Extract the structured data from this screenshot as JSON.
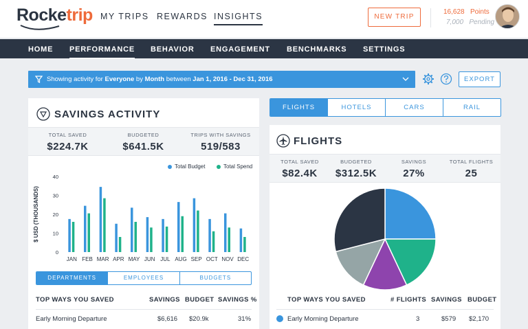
{
  "brand": {
    "rocket": "Rocke",
    "trip": "trip"
  },
  "topnav": [
    "MY TRIPS",
    "REWARDS",
    "INSIGHTS"
  ],
  "new_trip_label": "NEW TRIP",
  "points": {
    "value": "16,628",
    "label": "Points",
    "pending_value": "7,000",
    "pending_label": "Pending"
  },
  "subnav": [
    "HOME",
    "PERFORMANCE",
    "BEHAVIOR",
    "ENGAGEMENT",
    "BENCHMARKS",
    "SETTINGS"
  ],
  "filter": {
    "prefix": "Showing activity for ",
    "who": "Everyone",
    "by": " by ",
    "period": "Month",
    "between": " between ",
    "range": "Jan 1, 2016 - Dec 31, 2016"
  },
  "export_label": "EXPORT",
  "colors": {
    "accent": "#3a95dd",
    "brand_orange": "#ee6a3a",
    "dark_nav": "#2b3544",
    "spend_green": "#1fb28a"
  },
  "savings": {
    "title": "SAVINGS ACTIVITY",
    "stats": [
      {
        "label": "TOTAL SAVED",
        "value": "$224.7K"
      },
      {
        "label": "BUDGETED",
        "value": "$641.5K"
      },
      {
        "label": "TRIPS WITH SAVINGS",
        "value": "519/583"
      }
    ],
    "segments": [
      "DEPARTMENTS",
      "EMPLOYEES",
      "BUDGETS"
    ],
    "table_headers": [
      "TOP WAYS YOU SAVED",
      "SAVINGS",
      "BUDGET",
      "SAVINGS %"
    ],
    "rows": [
      {
        "name": "Early Morning Departure",
        "savings": "$6,616",
        "budget": "$20.9k",
        "pct": "31%"
      }
    ]
  },
  "chart_data": {
    "type": "bar",
    "ylabel": "$ USD (THOUSANDS)",
    "ylim": [
      0,
      40
    ],
    "yticks": [
      "0",
      "10",
      "20",
      "30",
      "40"
    ],
    "categories": [
      "JAN",
      "FEB",
      "MAR",
      "APR",
      "MAY",
      "JUN",
      "JUL",
      "AUG",
      "SEP",
      "OCT",
      "NOV",
      "DEC"
    ],
    "series": [
      {
        "name": "Total Budget",
        "color": "#3a95dd",
        "values": [
          17.5,
          24.5,
          34.5,
          15,
          23.5,
          18.5,
          17.5,
          26.5,
          28.5,
          17.5,
          20.5,
          12.5
        ]
      },
      {
        "name": "Total Spend",
        "color": "#1fb28a",
        "values": [
          16,
          20.5,
          28.5,
          8,
          16,
          13,
          13.5,
          19,
          22,
          11,
          13,
          8
        ]
      }
    ],
    "grid": false,
    "legend": "top-right"
  },
  "category_tabs": [
    "FLIGHTS",
    "HOTELS",
    "CARS",
    "RAIL"
  ],
  "flights": {
    "title": "FLIGHTS",
    "stats": [
      {
        "label": "TOTAL SAVED",
        "value": "$82.4K"
      },
      {
        "label": "BUDGETED",
        "value": "$312.5K"
      },
      {
        "label": "SAVINGS",
        "value": "27%"
      },
      {
        "label": "TOTAL FLIGHTS",
        "value": "25"
      }
    ],
    "pie": {
      "type": "pie",
      "slices": [
        {
          "value": 25,
          "color": "#3a95dd"
        },
        {
          "value": 18,
          "color": "#1fb28a"
        },
        {
          "value": 14,
          "color": "#8e44ad"
        },
        {
          "value": 14,
          "color": "#95a5a6"
        },
        {
          "value": 29,
          "color": "#2b3544"
        }
      ]
    },
    "table_headers": [
      "TOP WAYS YOU SAVED",
      "# FLIGHTS",
      "SAVINGS",
      "BUDGET"
    ],
    "rows": [
      {
        "name": "Early Morning Departure",
        "flights": "3",
        "savings": "$579",
        "budget": "$2,170",
        "dot_color": "#3a95dd"
      }
    ]
  }
}
